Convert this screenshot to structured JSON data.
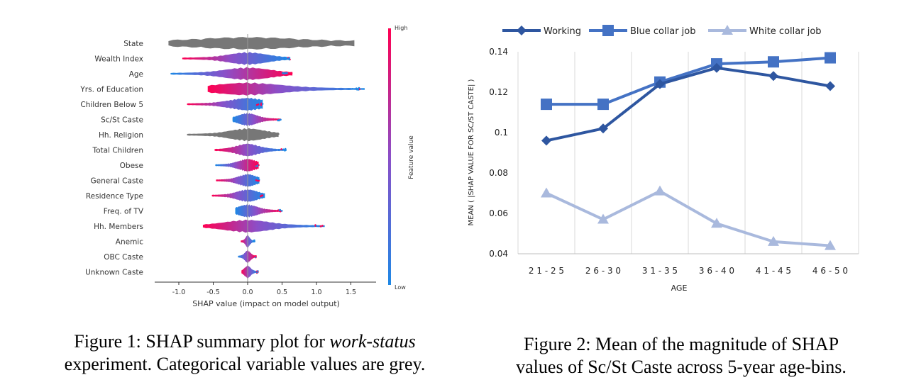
{
  "chart_data": [
    {
      "type": "scatter",
      "subtype": "shap-beeswarm",
      "xlabel": "SHAP value (impact on model output)",
      "xlim": [
        -1.25,
        1.65
      ],
      "x_ticks": [
        "-1.0",
        "-0.5",
        "0.0",
        "0.5",
        "1.0",
        "1.5"
      ],
      "x_tick_values": [
        -1.0,
        -0.5,
        0.0,
        0.5,
        1.0,
        1.5
      ],
      "colorbar": {
        "label": "Feature value",
        "high": "High",
        "low": "Low",
        "high_color": "#ff0052",
        "low_color": "#1e88e5"
      },
      "categorical_color": "#777777",
      "features": [
        {
          "name": "State",
          "range": [
            -1.15,
            1.55
          ],
          "categorical": true
        },
        {
          "name": "Wealth Index",
          "range": [
            -0.95,
            0.62
          ],
          "categorical": false
        },
        {
          "name": "Age",
          "range": [
            -1.12,
            0.65
          ],
          "categorical": false
        },
        {
          "name": "Yrs. of Education",
          "range": [
            -0.58,
            1.7
          ],
          "categorical": false
        },
        {
          "name": "Children Below 5",
          "range": [
            -0.88,
            0.22
          ],
          "categorical": false
        },
        {
          "name": "Sc/St Caste",
          "range": [
            -0.22,
            0.48
          ],
          "categorical": false
        },
        {
          "name": "Hh. Religion",
          "range": [
            -0.88,
            0.45
          ],
          "categorical": true
        },
        {
          "name": "Total Children",
          "range": [
            -0.48,
            0.56
          ],
          "categorical": false
        },
        {
          "name": "Obese",
          "range": [
            -0.47,
            0.16
          ],
          "categorical": false
        },
        {
          "name": "General Caste",
          "range": [
            -0.46,
            0.17
          ],
          "categorical": false
        },
        {
          "name": "Residence Type",
          "range": [
            -0.52,
            0.25
          ],
          "categorical": false
        },
        {
          "name": "Freq. of TV",
          "range": [
            -0.18,
            0.5
          ],
          "categorical": false
        },
        {
          "name": "Hh. Members",
          "range": [
            -0.65,
            1.12
          ],
          "categorical": false
        },
        {
          "name": "Anemic",
          "range": [
            -0.1,
            0.1
          ],
          "categorical": false
        },
        {
          "name": "OBC Caste",
          "range": [
            -0.14,
            0.12
          ],
          "categorical": false
        },
        {
          "name": "Unknown Caste",
          "range": [
            -0.09,
            0.15
          ],
          "categorical": false
        }
      ]
    },
    {
      "type": "line",
      "xlabel": "AGE",
      "ylabel": "MEAN ( |SHAP VALUE FOR SC/ST CASTE| )",
      "categories": [
        "2 1 - 2 5",
        "2 6 - 3 0",
        "3 1 - 3 5",
        "3 6 - 4 0",
        "4 1 - 4 5",
        "4 6 - 5 0"
      ],
      "ylim": [
        0.04,
        0.14
      ],
      "y_ticks": [
        "0.04",
        "0.06",
        "0.08",
        "0.1",
        "0.12",
        "0.14"
      ],
      "y_tick_values": [
        0.04,
        0.06,
        0.08,
        0.1,
        0.12,
        0.14
      ],
      "legend_position": "top",
      "series": [
        {
          "name": "Working",
          "values": [
            0.096,
            0.102,
            0.124,
            0.132,
            0.128,
            0.123
          ],
          "color": "#2e56a0",
          "marker": "diamond"
        },
        {
          "name": "Blue collar job",
          "values": [
            0.114,
            0.114,
            0.125,
            0.134,
            0.135,
            0.137
          ],
          "color": "#4472c4",
          "marker": "square"
        },
        {
          "name": "White collar job",
          "values": [
            0.07,
            0.057,
            0.071,
            0.055,
            0.046,
            0.044
          ],
          "color": "#a9b9dd",
          "marker": "triangle"
        }
      ]
    }
  ],
  "captions": {
    "fig1_prefix": "Figure 1: SHAP summary plot for ",
    "fig1_em": "work-status",
    "fig1_line2": "experiment. Categorical variable values are grey.",
    "fig2_line1": "Figure 2: Mean of the magnitude of SHAP",
    "fig2_line2": "values of Sc/St Caste across 5-year age-bins."
  }
}
